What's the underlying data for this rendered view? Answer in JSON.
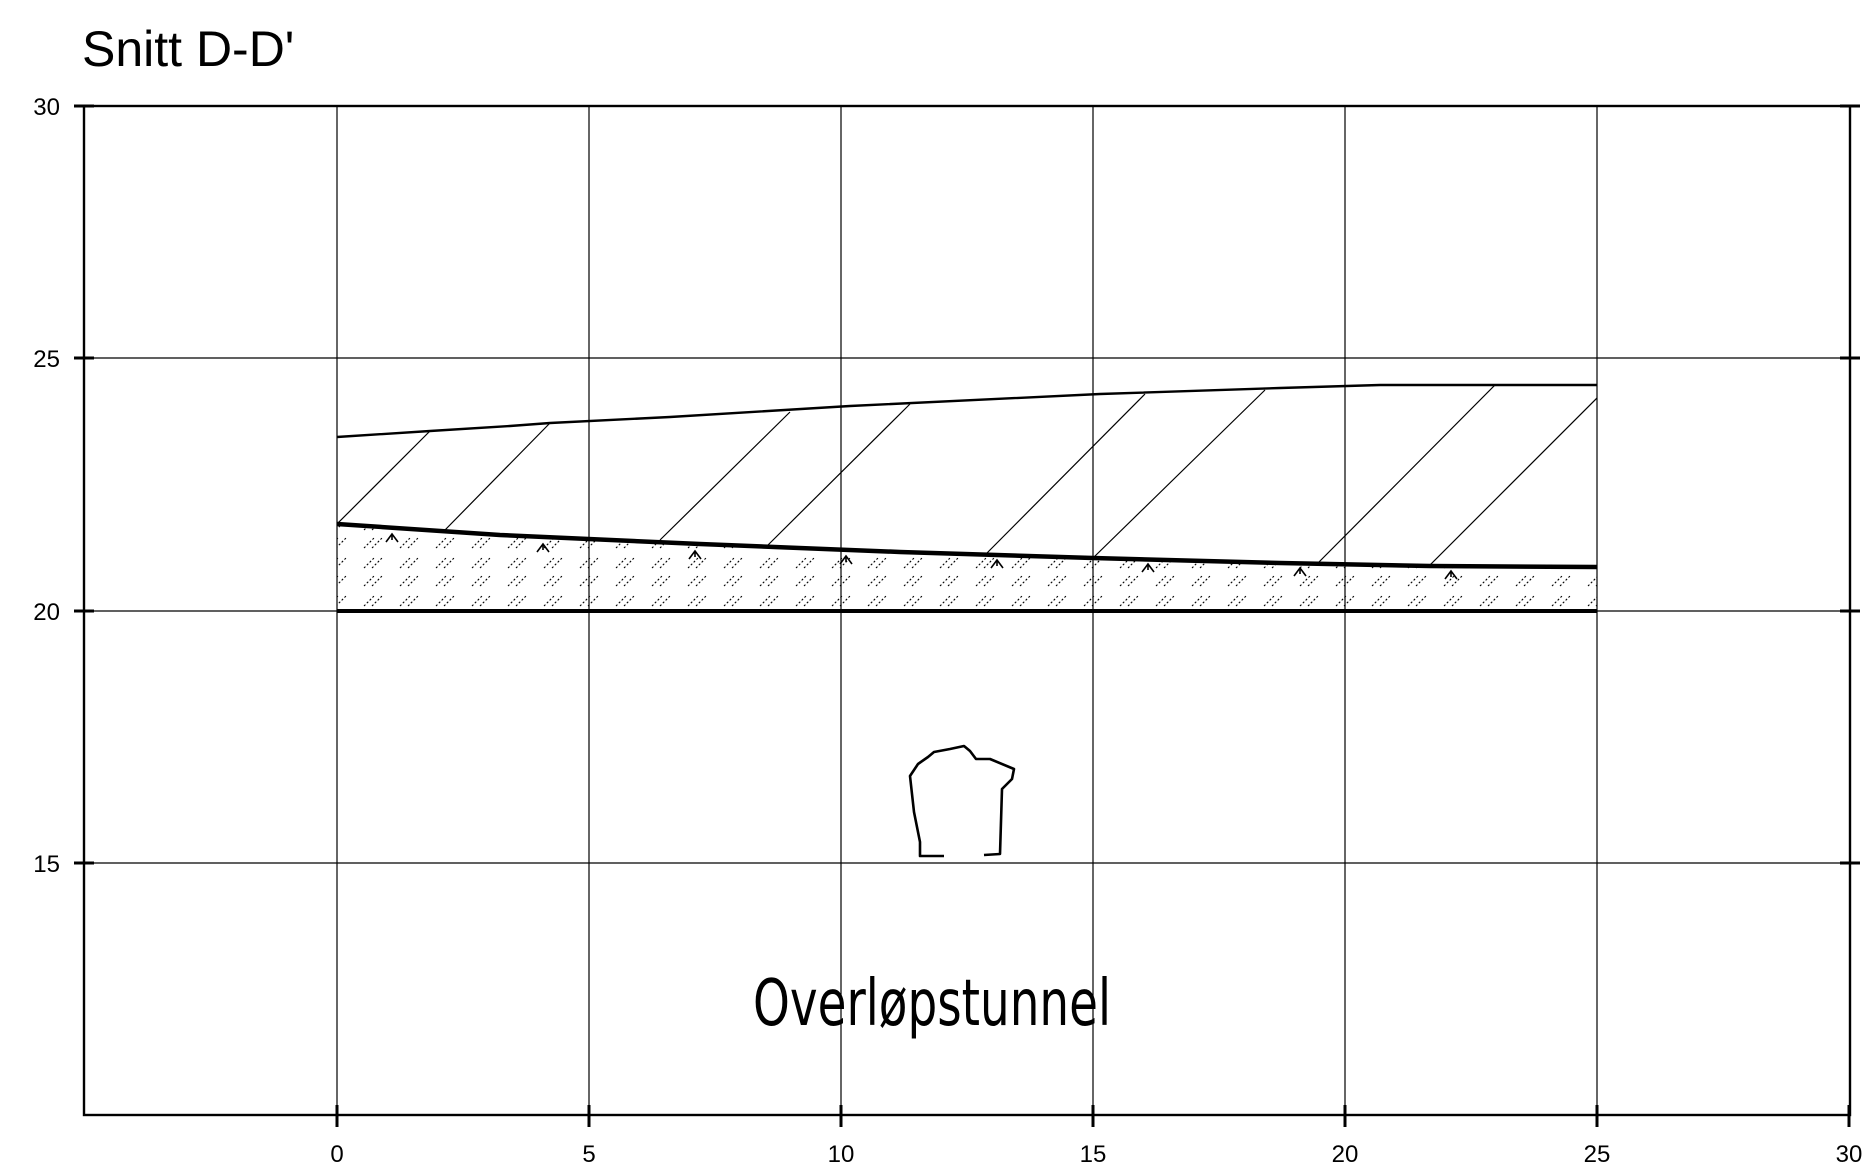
{
  "title": "Snitt D-D'",
  "x_axis": {
    "ticks": [
      0,
      5,
      10,
      15,
      20,
      25,
      30
    ],
    "labels": [
      "0",
      "5",
      "10",
      "15",
      "20",
      "25",
      "30"
    ]
  },
  "y_axis": {
    "ticks": [
      30,
      25,
      20,
      15
    ],
    "labels": [
      "30",
      "25",
      "20",
      "15"
    ]
  },
  "layers": {
    "fill_layer": "hatched fill layer between terrain and soil surface",
    "soil_layer": "dotted-hatched soil layer between boundary and level 20",
    "groundwater_symbol": "groundwater-marker-icon"
  },
  "tunnel": {
    "label": "Overløpstunnel",
    "icon": "tunnel-profile-icon"
  },
  "colors": {
    "line": "#000000",
    "background": "#ffffff"
  }
}
